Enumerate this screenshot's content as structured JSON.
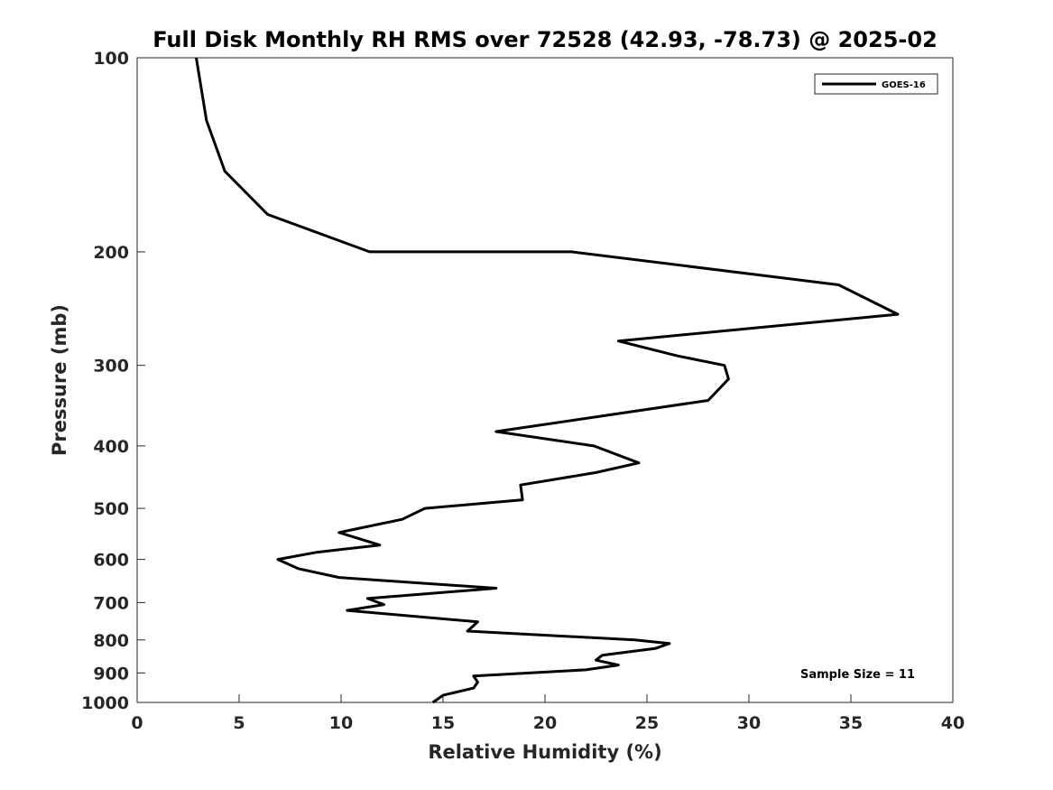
{
  "chart_data": {
    "type": "line",
    "title": "Full Disk Monthly RH RMS over 72528 (42.93, -78.73) @ 2025-02",
    "xlabel": "Relative Humidity (%)",
    "ylabel": "Pressure (mb)",
    "xlim": [
      0,
      40
    ],
    "ylim": [
      100,
      1000
    ],
    "y_scale": "log",
    "y_reversed": true,
    "x_ticks": [
      0,
      5,
      10,
      15,
      20,
      25,
      30,
      35,
      40
    ],
    "y_ticks": [
      100,
      200,
      300,
      400,
      500,
      600,
      700,
      800,
      900,
      1000
    ],
    "grid": false,
    "legend_position": "top-right",
    "annotation": "Sample Size = 11",
    "color": "#000000",
    "series": [
      {
        "name": "GOES-16",
        "points": [
          [
            2.9,
            100
          ],
          [
            3.4,
            125
          ],
          [
            4.3,
            150
          ],
          [
            6.4,
            175
          ],
          [
            11.4,
            200
          ],
          [
            21.3,
            200
          ],
          [
            34.4,
            225
          ],
          [
            37.3,
            250
          ],
          [
            23.6,
            275
          ],
          [
            26.5,
            290
          ],
          [
            28.8,
            300
          ],
          [
            29.0,
            315
          ],
          [
            28.0,
            340
          ],
          [
            17.6,
            380
          ],
          [
            22.4,
            400
          ],
          [
            24.6,
            425
          ],
          [
            22.5,
            440
          ],
          [
            18.8,
            460
          ],
          [
            18.9,
            485
          ],
          [
            14.1,
            500
          ],
          [
            13.0,
            520
          ],
          [
            9.9,
            545
          ],
          [
            11.9,
            570
          ],
          [
            8.8,
            585
          ],
          [
            6.9,
            600
          ],
          [
            7.9,
            620
          ],
          [
            9.9,
            640
          ],
          [
            17.6,
            665
          ],
          [
            11.3,
            690
          ],
          [
            12.1,
            705
          ],
          [
            10.3,
            720
          ],
          [
            16.7,
            750
          ],
          [
            16.2,
            775
          ],
          [
            24.4,
            800
          ],
          [
            26.1,
            810
          ],
          [
            25.4,
            825
          ],
          [
            22.8,
            845
          ],
          [
            22.5,
            860
          ],
          [
            23.6,
            875
          ],
          [
            22.0,
            890
          ],
          [
            16.5,
            910
          ],
          [
            16.7,
            930
          ],
          [
            16.5,
            950
          ],
          [
            15.0,
            975
          ],
          [
            14.5,
            1000
          ]
        ]
      }
    ]
  }
}
